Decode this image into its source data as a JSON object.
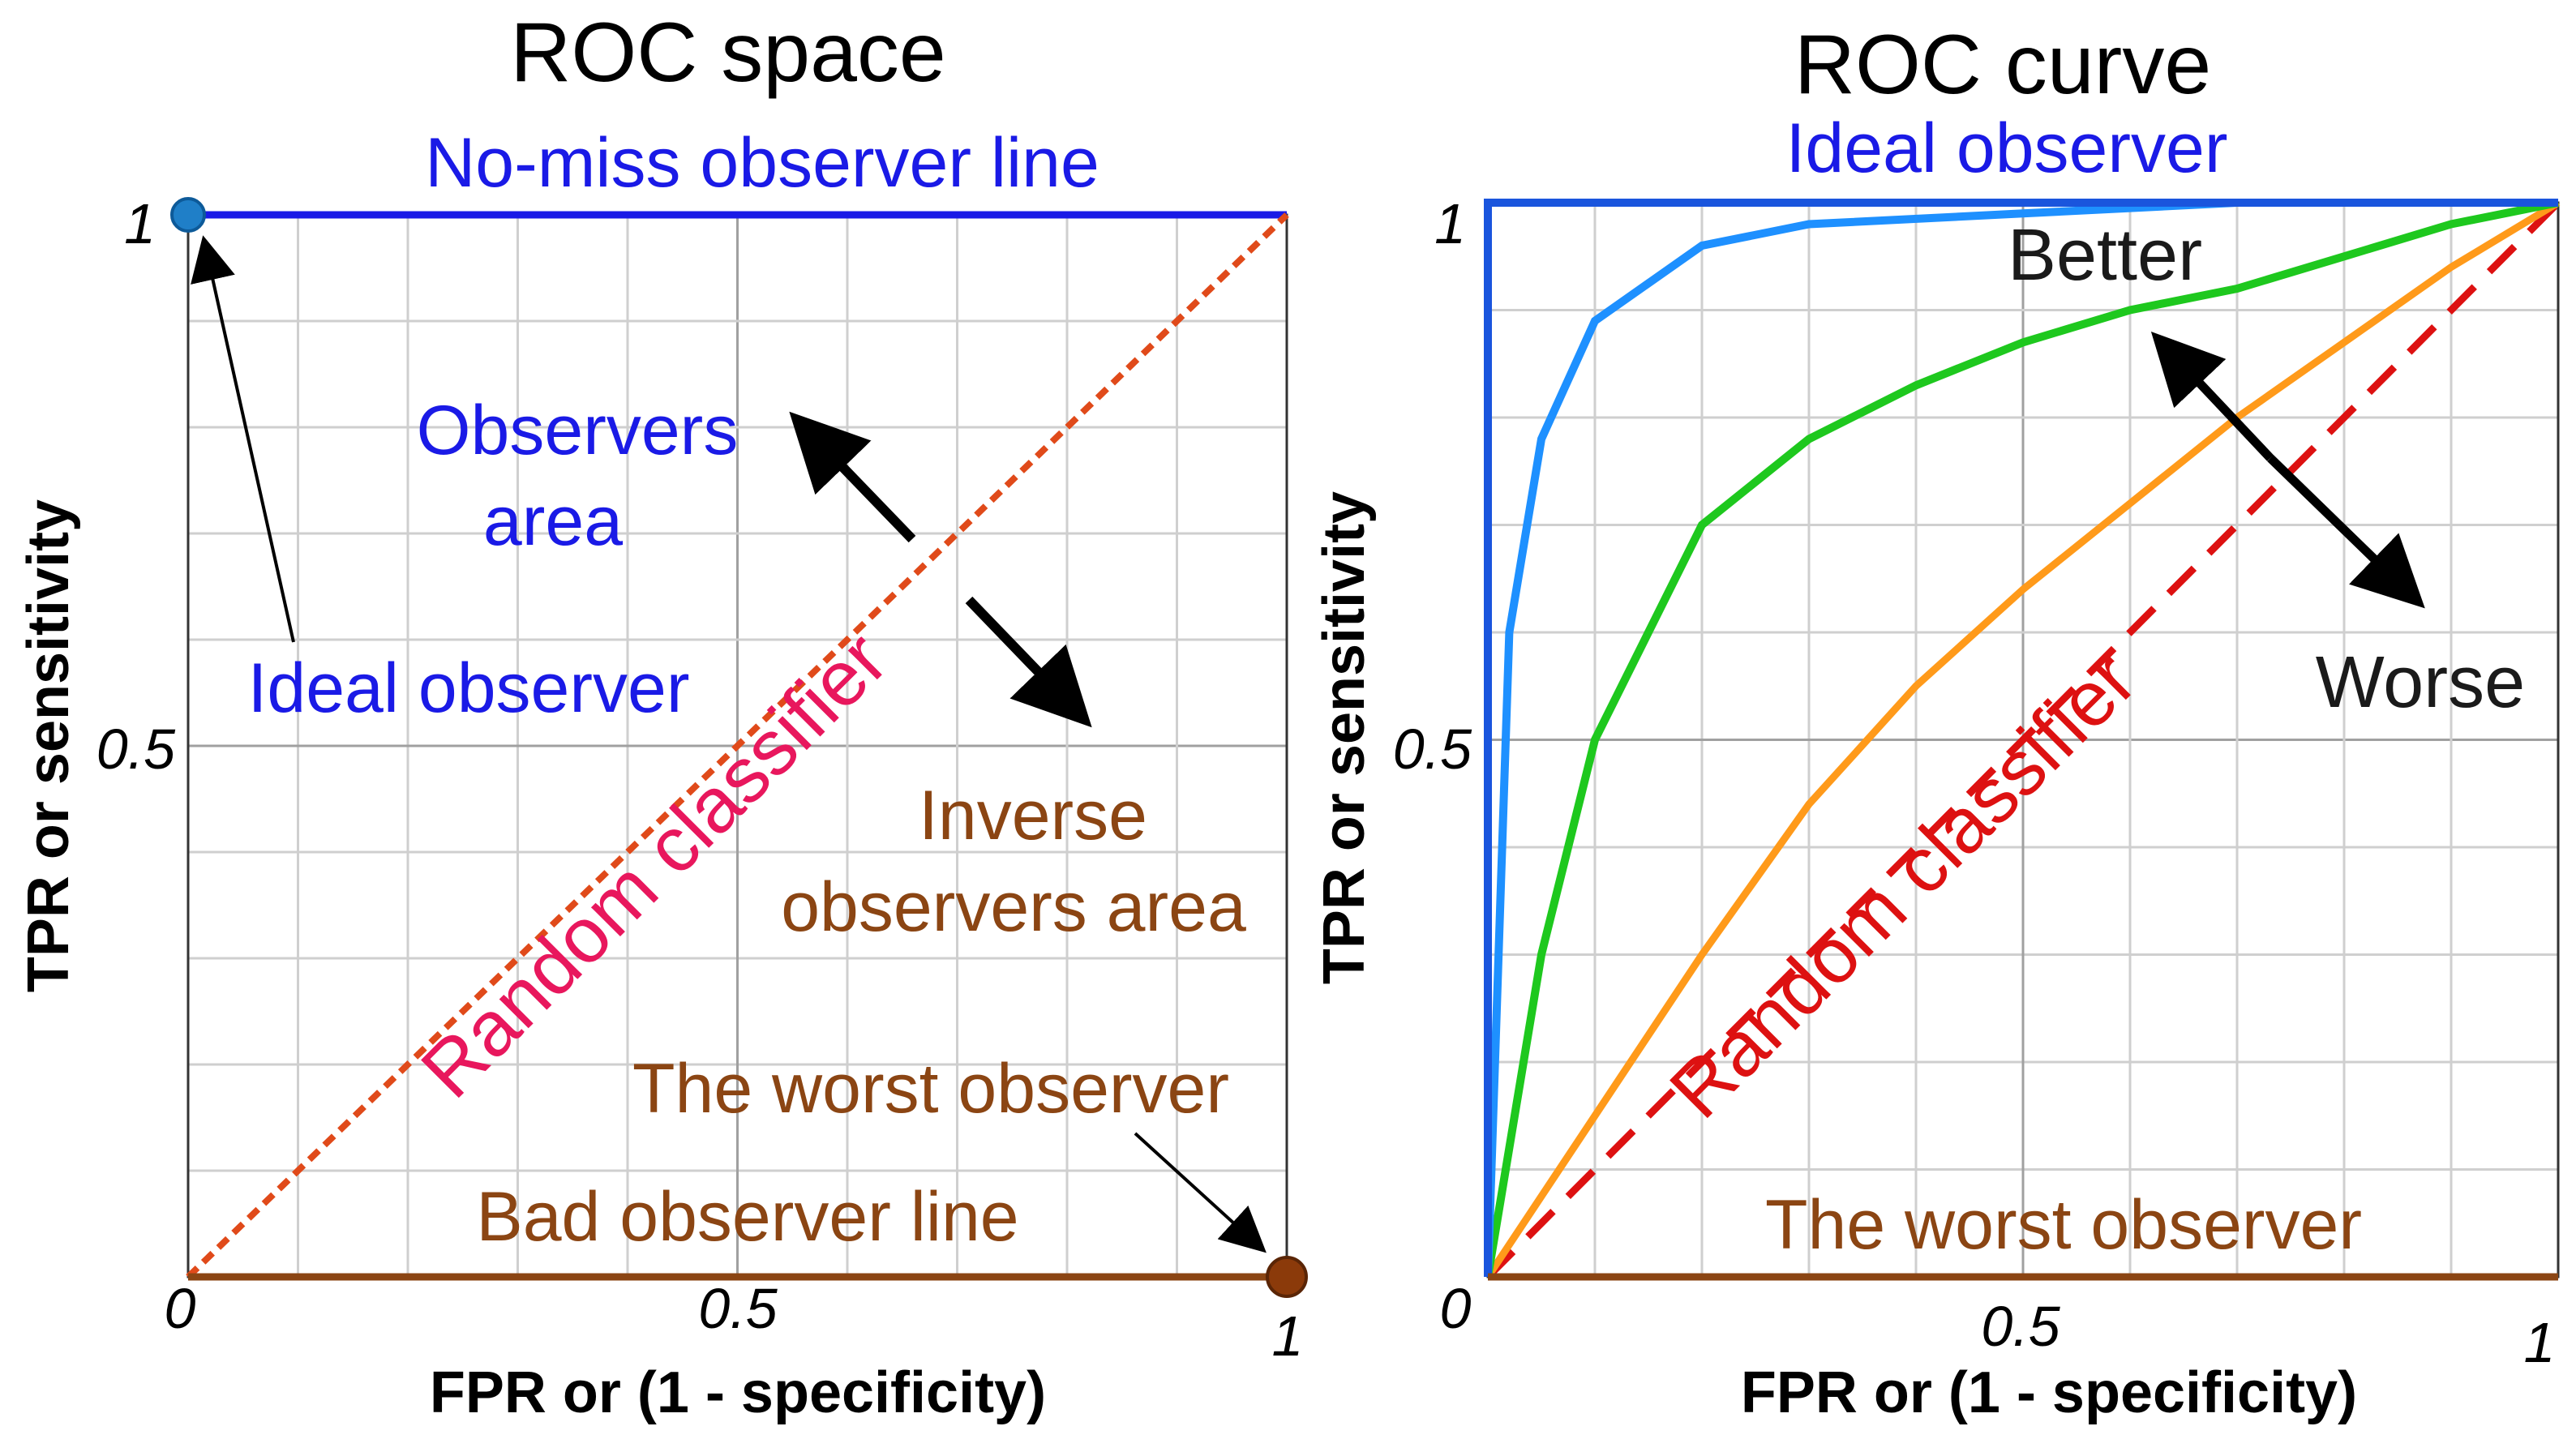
{
  "colors": {
    "blue": "#1a1ae6",
    "brown": "#8b4513",
    "random_left": "#e04a1a",
    "random_right": "#dd1111",
    "ideal_curve": "#1e90ff",
    "good_curve": "#1ec81e",
    "fair_curve": "#ff9a1a",
    "dot_blue": "#1f7fc8",
    "dot_brown": "#8b3a0a"
  },
  "chart_data": [
    {
      "type": "line",
      "title": "ROC space",
      "xlabel": "FPR or (1 - specificity)",
      "ylabel": "TPR or sensitivity",
      "xlim": [
        0,
        1
      ],
      "ylim": [
        0,
        1
      ],
      "x_ticks": [
        "0",
        "0.5",
        "1"
      ],
      "y_ticks": [
        "0",
        "0.5",
        "1"
      ],
      "grid": true,
      "series": [
        {
          "name": "No-miss observer line",
          "x": [
            0,
            1
          ],
          "y": [
            1,
            1
          ]
        },
        {
          "name": "Random classifier",
          "x": [
            0,
            1
          ],
          "y": [
            0,
            1
          ]
        },
        {
          "name": "Bad observer line",
          "x": [
            0,
            1
          ],
          "y": [
            0,
            0
          ]
        }
      ],
      "points": [
        {
          "name": "Ideal observer",
          "x": 0,
          "y": 1
        },
        {
          "name": "The worst observer",
          "x": 1,
          "y": 0
        }
      ],
      "annotations": {
        "observers_area_1": "Observers",
        "observers_area_2": "area",
        "inverse_1": "Inverse",
        "inverse_2": "observers area"
      }
    },
    {
      "type": "line",
      "title": "ROC curve",
      "xlabel": "FPR or (1 - specificity)",
      "ylabel": "TPR or sensitivity",
      "xlim": [
        0,
        1
      ],
      "ylim": [
        0,
        1
      ],
      "x_ticks": [
        "0",
        "0.5",
        "1"
      ],
      "y_ticks": [
        "0",
        "0.5",
        "1"
      ],
      "grid": true,
      "series": [
        {
          "name": "Ideal observer",
          "x": [
            0,
            0,
            1
          ],
          "y": [
            0,
            1,
            1
          ]
        },
        {
          "name": "",
          "x": [
            0,
            0.02,
            0.05,
            0.1,
            0.2,
            0.3,
            0.5,
            0.7,
            1
          ],
          "y": [
            0,
            0.6,
            0.78,
            0.89,
            0.96,
            0.98,
            0.99,
            1.0,
            1
          ]
        },
        {
          "name": "",
          "x": [
            0,
            0.05,
            0.1,
            0.2,
            0.3,
            0.4,
            0.5,
            0.6,
            0.7,
            0.8,
            0.9,
            1
          ],
          "y": [
            0,
            0.3,
            0.5,
            0.7,
            0.78,
            0.83,
            0.87,
            0.9,
            0.92,
            0.95,
            0.98,
            1
          ]
        },
        {
          "name": "",
          "x": [
            0,
            0.1,
            0.2,
            0.3,
            0.4,
            0.5,
            0.6,
            0.7,
            0.8,
            0.9,
            1
          ],
          "y": [
            0,
            0.15,
            0.3,
            0.44,
            0.55,
            0.64,
            0.72,
            0.8,
            0.87,
            0.94,
            1
          ]
        },
        {
          "name": "Random classifier",
          "x": [
            0,
            1
          ],
          "y": [
            0,
            1
          ]
        },
        {
          "name": "The worst observer",
          "x": [
            0,
            1
          ],
          "y": [
            0,
            0
          ]
        }
      ],
      "annotations": {
        "better": "Better",
        "worse": "Worse"
      }
    }
  ]
}
